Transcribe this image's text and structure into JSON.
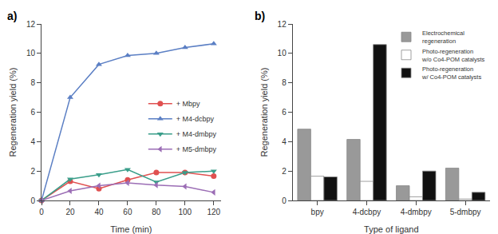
{
  "chart_data": [
    {
      "type": "line",
      "title": "a)",
      "xlabel": "Time (min)",
      "ylabel": "Regeneration yield (%)",
      "x": [
        0,
        20,
        40,
        60,
        80,
        100,
        120
      ],
      "series": [
        {
          "name": "+ Mbpy",
          "color": "#e05050",
          "marker": "circle",
          "values": [
            0,
            1.3,
            0.8,
            1.4,
            1.9,
            1.9,
            1.65
          ]
        },
        {
          "name": "+ M4-dcbpy",
          "color": "#5b7fc4",
          "marker": "triangle-up",
          "values": [
            0,
            7.0,
            9.25,
            9.85,
            10.0,
            10.4,
            10.65
          ]
        },
        {
          "name": "+ M4-dmbpy",
          "color": "#3a9e8a",
          "marker": "triangle-down",
          "values": [
            0,
            1.45,
            1.75,
            2.1,
            1.25,
            1.9,
            2.0
          ]
        },
        {
          "name": "+ M5-dmbpy",
          "color": "#9b6db5",
          "marker": "triangle-left",
          "values": [
            0,
            0.65,
            1.0,
            1.2,
            1.05,
            0.95,
            0.55
          ]
        }
      ],
      "xlim": [
        0,
        125
      ],
      "xticks": [
        0,
        20,
        40,
        60,
        80,
        100,
        120
      ],
      "ylim": [
        0,
        12
      ],
      "yticks": [
        0,
        2,
        4,
        6,
        8,
        10,
        12
      ],
      "grid": false,
      "legend": "right"
    },
    {
      "type": "bar",
      "title": "b)",
      "xlabel": "Type of ligand",
      "ylabel": "Regeneration yield (%)",
      "categories": [
        "bpy",
        "4-dcbpy",
        "4-dmbpy",
        "5-dmbpy"
      ],
      "series": [
        {
          "name": "Electrochemical\nregeneration",
          "color": "#999999",
          "values": [
            4.85,
            4.15,
            1.0,
            2.2
          ]
        },
        {
          "name": "Photo-regeneration\nw/o Co4-POM catalysts",
          "color": "#ffffff",
          "values": [
            1.65,
            1.3,
            0.25,
            0.1
          ]
        },
        {
          "name": "Photo-regeneration\nw/ Co4-POM catalysts",
          "color": "#111111",
          "values": [
            1.6,
            10.6,
            2.0,
            0.55
          ]
        }
      ],
      "ylim": [
        0,
        12
      ],
      "yticks": [
        0,
        2,
        4,
        6,
        8,
        10,
        12
      ],
      "grid": false,
      "legend": "upper right"
    }
  ]
}
